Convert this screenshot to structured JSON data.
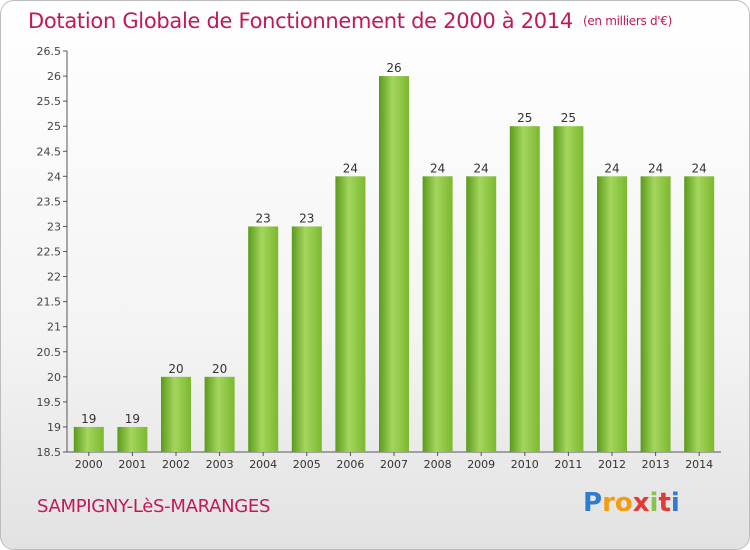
{
  "title": "Dotation Globale de Fonctionnement de 2000 à 2014",
  "subtitle": "(en milliers d'€)",
  "commune": "SAMPIGNY-LèS-MARANGES",
  "logo": {
    "letters": [
      "P",
      "r",
      "o",
      "x",
      "i",
      "t",
      "i"
    ],
    "colors": [
      "#2e7bcf",
      "#f39c12",
      "#f39c12",
      "#e53935",
      "#8bc34a",
      "#e53935",
      "#2e7bcf"
    ]
  },
  "colors": {
    "bar": "#7cb82f",
    "bar_light": "#a4d65e",
    "bar_dark": "#5a9a1c",
    "text": "#c2185b",
    "axis": "#555555"
  },
  "chart_data": {
    "type": "bar",
    "title": "Dotation Globale de Fonctionnement de 2000 à 2014",
    "categories": [
      "2000",
      "2001",
      "2002",
      "2003",
      "2004",
      "2005",
      "2006",
      "2007",
      "2008",
      "2009",
      "2010",
      "2011",
      "2012",
      "2013",
      "2014"
    ],
    "values": [
      19,
      19,
      20,
      20,
      23,
      23,
      24,
      26,
      24,
      24,
      25,
      25,
      24,
      24,
      24
    ],
    "ylim": [
      18.5,
      26.5
    ],
    "yticks": [
      "18.5",
      "19",
      "19.5",
      "20",
      "20.5",
      "21",
      "21.5",
      "22",
      "22.5",
      "23",
      "23.5",
      "24",
      "24.5",
      "25",
      "25.5",
      "26",
      "26.5"
    ],
    "grid": false,
    "legend": "none"
  }
}
